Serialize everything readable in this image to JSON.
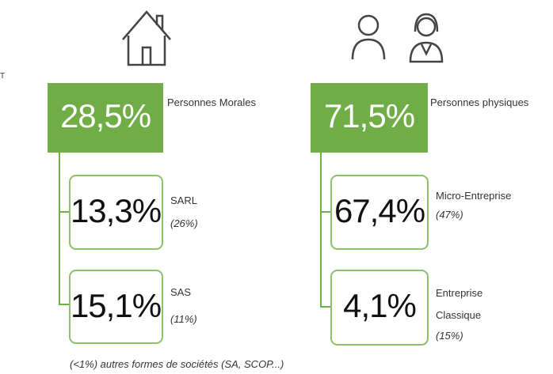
{
  "margin_text": "T",
  "left": {
    "total": "28,5%",
    "label": "Personnes Morales",
    "items": [
      {
        "value": "13,3%",
        "label": [
          "SARL"
        ],
        "share": "(26%)"
      },
      {
        "value": "15,1%",
        "label": [
          "SAS"
        ],
        "share": "(11%)"
      }
    ]
  },
  "right": {
    "total": "71,5%",
    "label": "Personnes physiques",
    "items": [
      {
        "value": "67,4%",
        "label": [
          "Micro-Entreprise"
        ],
        "share": "(47%)"
      },
      {
        "value": "4,1%",
        "label": [
          "Entreprise",
          "Classique"
        ],
        "share": "(15%)"
      }
    ]
  },
  "footnote": "(<1%) autres formes de sociétés (SA, SCOP...)"
}
